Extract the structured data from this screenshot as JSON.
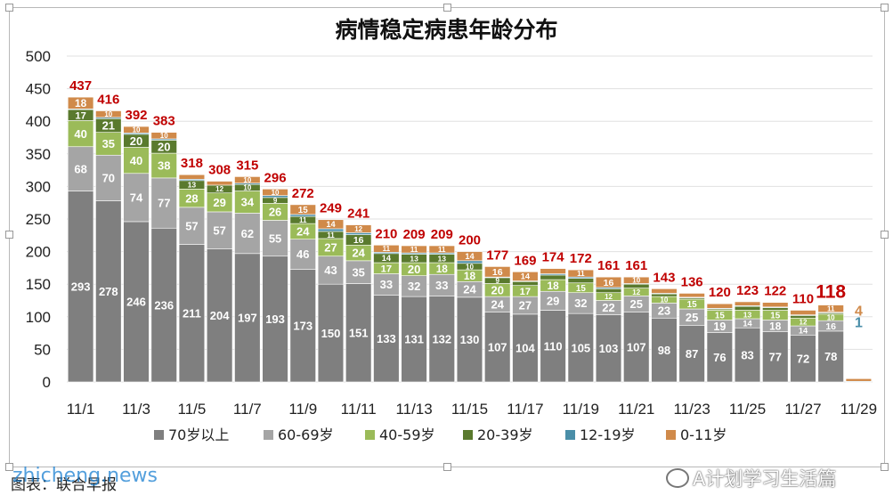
{
  "chart_data": {
    "type": "bar",
    "stacked": true,
    "title": "病情稳定病患年龄分布",
    "categories": [
      "11/1",
      "11/2",
      "11/3",
      "11/4",
      "11/5",
      "11/6",
      "11/7",
      "11/8",
      "11/9",
      "11/10",
      "11/11",
      "11/12",
      "11/13",
      "11/14",
      "11/15",
      "11/16",
      "11/17",
      "11/18",
      "11/19",
      "11/20",
      "11/21",
      "11/22",
      "11/23",
      "11/24",
      "11/25",
      "11/26",
      "11/27",
      "11/28",
      "11/29"
    ],
    "x_tick_labels": [
      "11/1",
      "11/3",
      "11/5",
      "11/7",
      "11/9",
      "11/11",
      "11/13",
      "11/15",
      "11/17",
      "11/19",
      "11/21",
      "11/23",
      "11/25",
      "11/27",
      "11/29"
    ],
    "ylim": [
      0,
      500
    ],
    "y_ticks": [
      0,
      50,
      100,
      150,
      200,
      250,
      300,
      350,
      400,
      450,
      500
    ],
    "grid": true,
    "legend_position": "bottom",
    "series": [
      {
        "name": "70岁以上",
        "color": "#7f7f7f",
        "values": [
          293,
          278,
          246,
          236,
          211,
          204,
          197,
          193,
          173,
          150,
          151,
          133,
          131,
          132,
          130,
          107,
          104,
          110,
          105,
          103,
          107,
          98,
          87,
          76,
          83,
          77,
          72,
          78,
          0
        ]
      },
      {
        "name": "60-69岁",
        "color": "#a5a5a5",
        "values": [
          68,
          70,
          74,
          77,
          57,
          57,
          62,
          55,
          46,
          43,
          35,
          33,
          32,
          33,
          24,
          24,
          27,
          29,
          32,
          22,
          25,
          23,
          25,
          19,
          14,
          18,
          14,
          16,
          0
        ]
      },
      {
        "name": "40-59岁",
        "color": "#9bbb59",
        "values": [
          40,
          35,
          40,
          38,
          28,
          29,
          34,
          26,
          24,
          27,
          24,
          17,
          20,
          18,
          18,
          20,
          17,
          18,
          15,
          12,
          12,
          10,
          15,
          15,
          13,
          15,
          12,
          10,
          0
        ]
      },
      {
        "name": "20-39岁",
        "color": "#5a7a2e",
        "values": [
          17,
          21,
          20,
          20,
          13,
          12,
          10,
          9,
          11,
          11,
          16,
          14,
          13,
          13,
          10,
          9,
          6,
          7,
          7,
          6,
          6,
          4,
          2,
          2,
          6,
          4,
          4,
          2,
          0
        ]
      },
      {
        "name": "12-19岁",
        "color": "#4a8ea8",
        "values": [
          1,
          2,
          2,
          2,
          2,
          0,
          2,
          3,
          3,
          4,
          3,
          2,
          2,
          2,
          4,
          1,
          1,
          2,
          2,
          2,
          1,
          1,
          1,
          1,
          1,
          1,
          1,
          1,
          1
        ]
      },
      {
        "name": "0-11岁",
        "color": "#d08a4a",
        "values": [
          18,
          10,
          10,
          10,
          7,
          6,
          10,
          10,
          15,
          14,
          12,
          11,
          11,
          11,
          14,
          16,
          14,
          8,
          11,
          16,
          10,
          7,
          6,
          7,
          6,
          7,
          7,
          11,
          4
        ]
      }
    ],
    "totals": [
      437,
      416,
      392,
      383,
      318,
      308,
      315,
      296,
      272,
      249,
      241,
      210,
      209,
      209,
      200,
      177,
      169,
      174,
      172,
      161,
      161,
      143,
      136,
      120,
      123,
      122,
      110,
      118,
      null
    ],
    "total_label_color": "#c00000",
    "segment_labels": {
      "70岁以上": true,
      "60-69岁": true,
      "40-59岁": true,
      "20-39岁": true,
      "0-11岁": true
    },
    "extra_labels": {
      "last_0_11": "4",
      "last_12_19": "1"
    }
  },
  "footer": {
    "watermark_left": "zhicheng.news",
    "source_note": "图表：联合早报",
    "watermark_right": "A计划学习生活篇"
  }
}
